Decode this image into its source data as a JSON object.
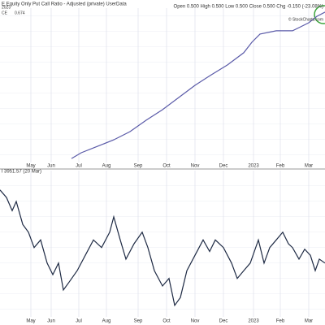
{
  "chart_data": [
    {
      "type": "line",
      "title": "E Equity Only Put Call Ratio - Adjusted (private) UserData",
      "subtitle": "Open 0.500  High 0.500  Low 0.500  Close 0.500  Chg -0.150 (-23.08%)",
      "annotations": [
        "© StockCharts.com",
        "2023",
        "CE",
        "0.674"
      ],
      "color": "#5a5aa8",
      "x": [
        88,
        100,
        120,
        140,
        160,
        180,
        200,
        220,
        240,
        260,
        280,
        300,
        310,
        320,
        340,
        360,
        370,
        380,
        390,
        400
      ],
      "values": [
        2.6,
        6.3,
        10.5,
        14.7,
        20,
        27.4,
        34.2,
        42.1,
        50,
        56.8,
        63.2,
        71.1,
        77.9,
        83.2,
        85.3,
        85.3,
        87.9,
        90.5,
        94.7,
        97.4
      ],
      "xlim": [
        0,
        400
      ],
      "ylim": [
        0,
        100
      ],
      "xticks": [
        {
          "value": 38,
          "label": "May"
        },
        {
          "value": 63,
          "label": "Jun"
        },
        {
          "value": 97,
          "label": "Jul"
        },
        {
          "value": 131,
          "label": "Aug"
        },
        {
          "value": 170,
          "label": "Sep"
        },
        {
          "value": 205,
          "label": "Oct"
        },
        {
          "value": 240,
          "label": "Nov"
        },
        {
          "value": 275,
          "label": "Dec"
        },
        {
          "value": 312,
          "label": "2023"
        },
        {
          "value": 345,
          "label": "Feb"
        },
        {
          "value": 380,
          "label": "Mar"
        }
      ],
      "grid": true
    },
    {
      "type": "line",
      "title": "l 3951.57 (20 Mar)",
      "color": "#1e2a44",
      "x": [
        0,
        8,
        15,
        20,
        28,
        35,
        42,
        50,
        58,
        65,
        72,
        78,
        85,
        95,
        105,
        115,
        125,
        135,
        140,
        148,
        155,
        165,
        175,
        182,
        190,
        200,
        208,
        215,
        222,
        230,
        240,
        250,
        258,
        265,
        275,
        285,
        292,
        300,
        308,
        318,
        325,
        332,
        340,
        348,
        355,
        360,
        368,
        375,
        382,
        388,
        393,
        400
      ],
      "values": [
        86.8,
        81.6,
        72.6,
        78.9,
        63.2,
        57.9,
        47.4,
        52.6,
        36.8,
        28.9,
        36.8,
        18.4,
        23.7,
        31.6,
        42.1,
        52.6,
        47.4,
        57.9,
        68.4,
        52.6,
        39.5,
        50,
        57.9,
        47.4,
        31.6,
        21.1,
        26.3,
        7.9,
        13.2,
        31.6,
        42.1,
        52.6,
        44.7,
        52.6,
        47.4,
        36.8,
        26.3,
        31.6,
        36.8,
        52.6,
        36.8,
        47.4,
        52.6,
        57.9,
        50,
        47.4,
        39.5,
        46.3,
        42.1,
        31.6,
        39.5,
        36.8
      ],
      "xlim": [
        0,
        400
      ],
      "ylim": [
        0,
        100
      ],
      "xticks": [
        {
          "value": 38,
          "label": "May"
        },
        {
          "value": 63,
          "label": "Jun"
        },
        {
          "value": 97,
          "label": "Jul"
        },
        {
          "value": 131,
          "label": "Aug"
        },
        {
          "value": 170,
          "label": "Sep"
        },
        {
          "value": 205,
          "label": "Oct"
        },
        {
          "value": 240,
          "label": "Nov"
        },
        {
          "value": 275,
          "label": "Dec"
        },
        {
          "value": 312,
          "label": "2023"
        },
        {
          "value": 345,
          "label": "Feb"
        },
        {
          "value": 380,
          "label": "Mar"
        }
      ],
      "grid": true
    }
  ]
}
